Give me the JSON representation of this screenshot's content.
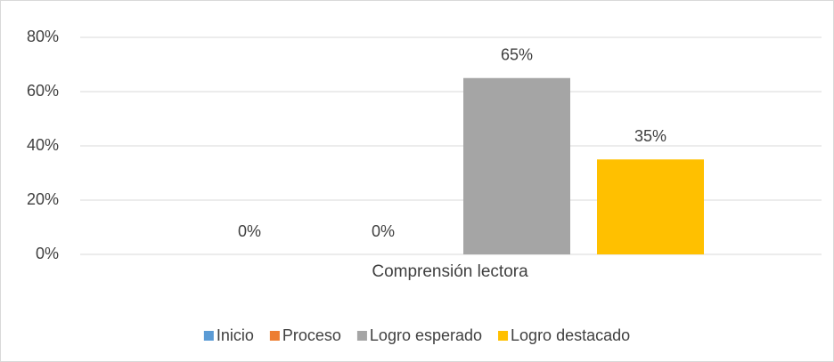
{
  "chart_data": {
    "type": "bar",
    "categories": [
      "Comprensión lectora"
    ],
    "series": [
      {
        "name": "Inicio",
        "color": "#5b9bd5",
        "values": [
          0
        ],
        "value_labels": [
          "0%"
        ]
      },
      {
        "name": "Proceso",
        "color": "#ed7d31",
        "values": [
          0
        ],
        "value_labels": [
          "0%"
        ]
      },
      {
        "name": "Logro esperado",
        "color": "#a5a5a5",
        "values": [
          65
        ],
        "value_labels": [
          "65%"
        ]
      },
      {
        "name": "Logro destacado",
        "color": "#ffc000",
        "values": [
          35
        ],
        "value_labels": [
          "35%"
        ]
      }
    ],
    "ylim": [
      0,
      80
    ],
    "yticks": [
      {
        "value": 0,
        "label": "0%"
      },
      {
        "value": 20,
        "label": "20%"
      },
      {
        "value": 40,
        "label": "40%"
      },
      {
        "value": 60,
        "label": "60%"
      },
      {
        "value": 80,
        "label": "80%"
      }
    ],
    "grid": true,
    "legend": "bottom"
  }
}
